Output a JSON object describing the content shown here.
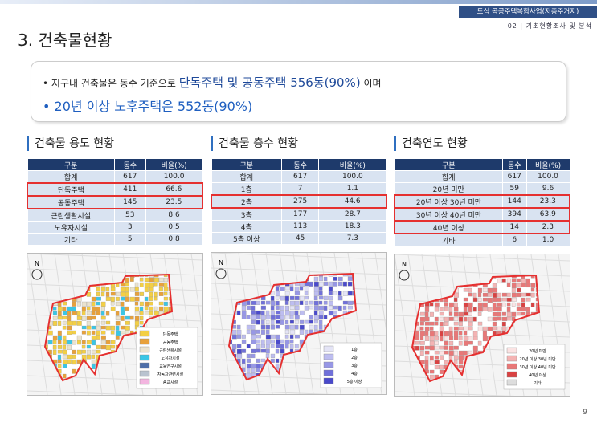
{
  "header": {
    "project": "도심 공공주택복합사업(저층주거지)",
    "section": "02  |  기초현황조사 및 분석"
  },
  "title": "3. 건축물현황",
  "summary": {
    "line1": {
      "text": "지구내 건축물은 동수 기준으로 ",
      "highlight": "단독주택 및 공동주택 556동(90%)",
      "tail": " 이며"
    },
    "line2": "20년 이상 노후주택은 552동(90%)"
  },
  "map_north_label": "N",
  "panels": [
    {
      "heading": "건축물 용도 현황",
      "table": {
        "header": [
          "구분",
          "동수",
          "비율(%)"
        ],
        "rows": [
          [
            "합계",
            "617",
            "100.0"
          ],
          [
            "단독주택",
            "411",
            "66.6"
          ],
          [
            "공동주택",
            "145",
            "23.5"
          ],
          [
            "근린생활시설",
            "53",
            "8.6"
          ],
          [
            "노유자시설",
            "3",
            "0.5"
          ],
          [
            "기타",
            "5",
            "0.8"
          ]
        ]
      },
      "legend": [
        {
          "label": "단독주택",
          "color": "#f3cf45"
        },
        {
          "label": "공동주택",
          "color": "#e8a13a"
        },
        {
          "label": "근린생활시설",
          "color": "#eae3cf"
        },
        {
          "label": "노유자시설",
          "color": "#39c6e6"
        },
        {
          "label": "교육연구시설",
          "color": "#4f6fa8"
        },
        {
          "label": "자동차관련시설",
          "color": "#b9c3cf"
        },
        {
          "label": "종교시설",
          "color": "#f3b6e0"
        }
      ]
    },
    {
      "heading": "건축물 층수 현황",
      "table": {
        "header": [
          "구분",
          "동수",
          "비율(%)"
        ],
        "rows": [
          [
            "합계",
            "617",
            "100.0"
          ],
          [
            "1층",
            "7",
            "1.1"
          ],
          [
            "2층",
            "275",
            "44.6"
          ],
          [
            "3층",
            "177",
            "28.7"
          ],
          [
            "4층",
            "113",
            "18.3"
          ],
          [
            "5층 이상",
            "45",
            "7.3"
          ]
        ]
      },
      "legend": [
        {
          "label": "1층",
          "color": "#e4e4f6"
        },
        {
          "label": "2층",
          "color": "#bdbdf0"
        },
        {
          "label": "3층",
          "color": "#9797e6"
        },
        {
          "label": "4층",
          "color": "#7070da"
        },
        {
          "label": "5층 이상",
          "color": "#4a4acb"
        }
      ]
    },
    {
      "heading": "건축연도 현황",
      "table": {
        "header": [
          "구분",
          "동수",
          "비율(%)"
        ],
        "rows": [
          [
            "합계",
            "617",
            "100.0"
          ],
          [
            "20년 미만",
            "59",
            "9.6"
          ],
          [
            "20년 이상 30년 미만",
            "144",
            "23.3"
          ],
          [
            "30년 이상 40년 미만",
            "394",
            "63.9"
          ],
          [
            "40년 이상",
            "14",
            "2.3"
          ],
          [
            "기타",
            "6",
            "1.0"
          ]
        ]
      },
      "legend": [
        {
          "label": "20년 미만",
          "color": "#fbe3e3"
        },
        {
          "label": "20년 이상 30년 미만",
          "color": "#f4b3b3"
        },
        {
          "label": "30년 이상 40년 미만",
          "color": "#e97777"
        },
        {
          "label": "40년 이상",
          "color": "#d94242"
        },
        {
          "label": "기타",
          "color": "#dddddd"
        }
      ]
    }
  ],
  "page_number": "9"
}
